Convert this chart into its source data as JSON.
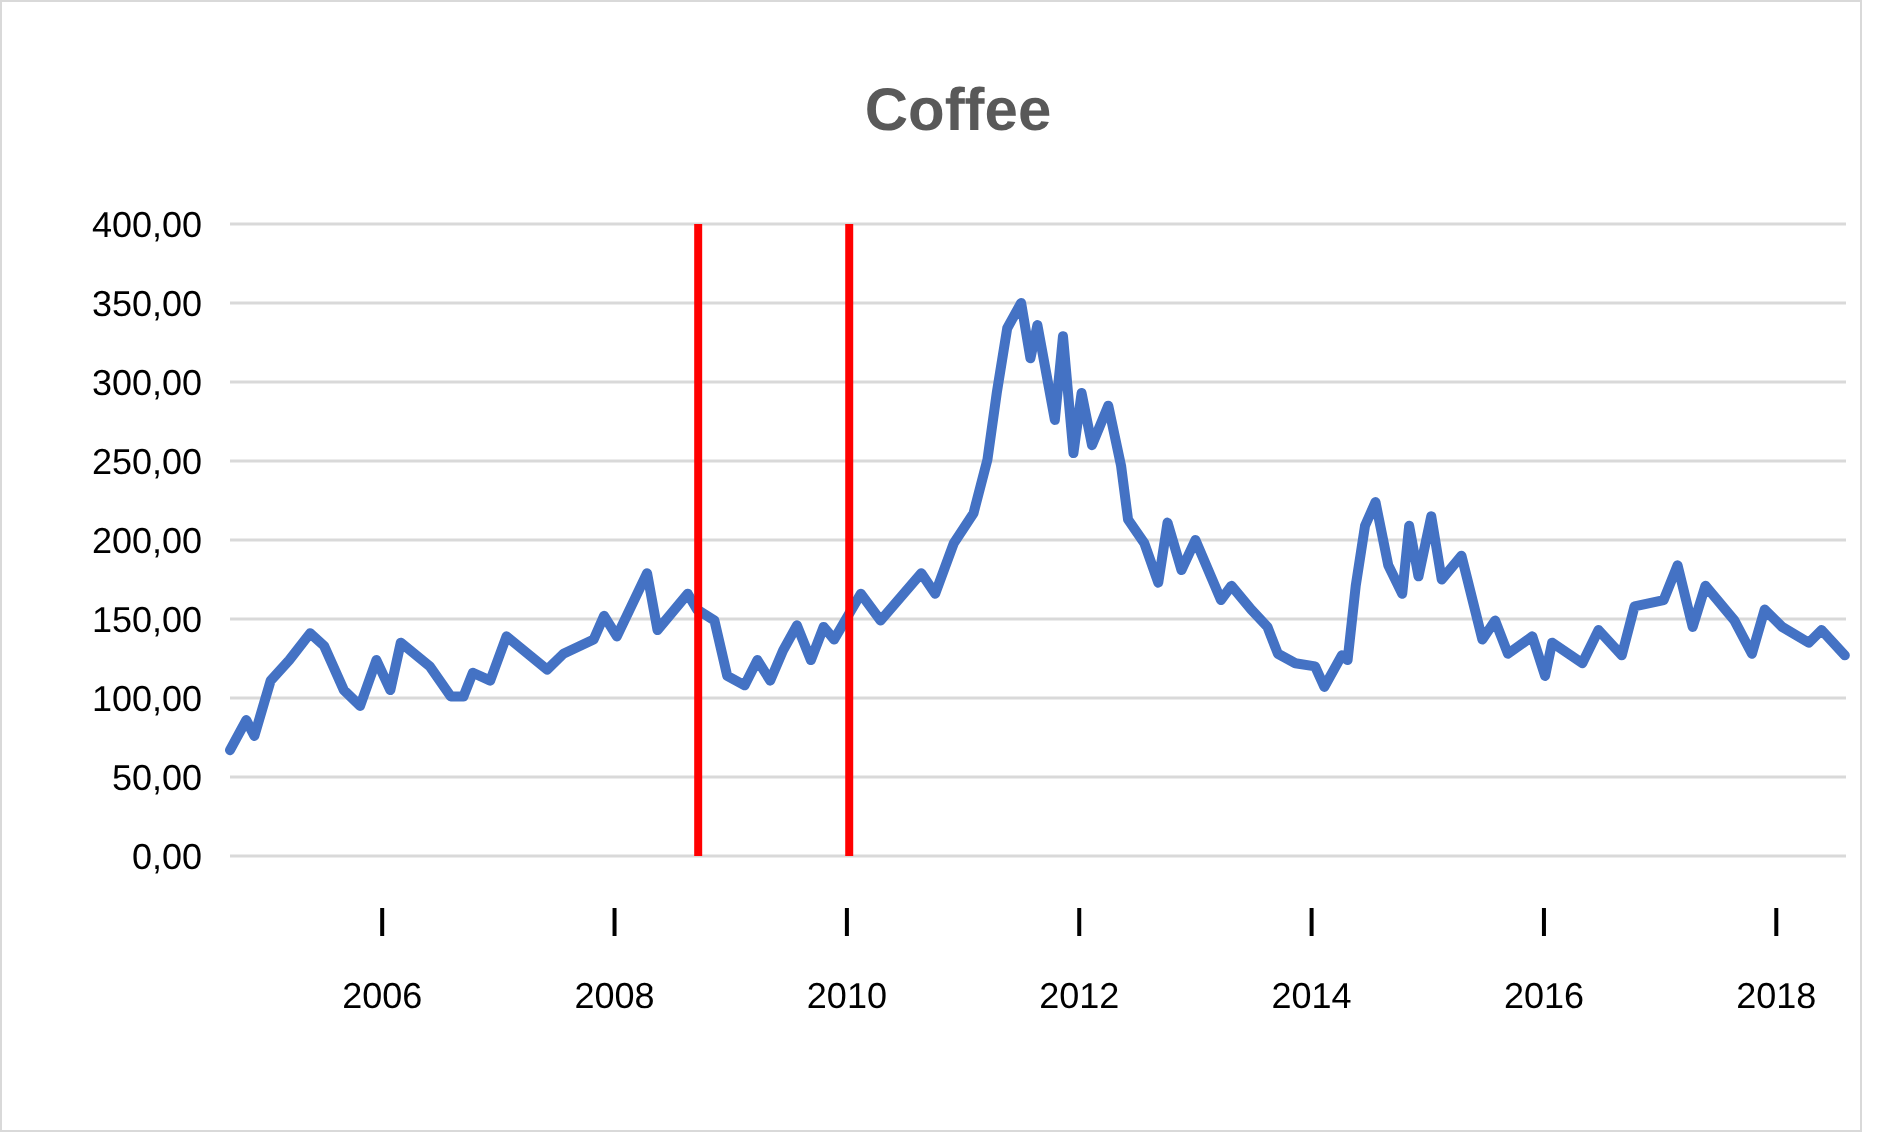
{
  "chart_data": {
    "type": "line",
    "title": "Coffee",
    "x": [
      2004.69,
      2004.83,
      2004.9,
      2005.04,
      2005.2,
      2005.38,
      2005.5,
      2005.67,
      2005.81,
      2005.95,
      2006.07,
      2006.16,
      2006.41,
      2006.59,
      2006.7,
      2006.78,
      2006.93,
      2007.07,
      2007.42,
      2007.56,
      2007.82,
      2007.91,
      2008.02,
      2008.28,
      2008.37,
      2008.63,
      2008.71,
      2008.86,
      2008.97,
      2009.12,
      2009.23,
      2009.34,
      2009.45,
      2009.57,
      2009.69,
      2009.8,
      2009.89,
      2010.12,
      2010.29,
      2010.64,
      2010.76,
      2010.92,
      2011.09,
      2011.21,
      2011.29,
      2011.38,
      2011.5,
      2011.58,
      2011.64,
      2011.79,
      2011.86,
      2011.95,
      2012.02,
      2012.11,
      2012.25,
      2012.36,
      2012.42,
      2012.56,
      2012.68,
      2012.76,
      2012.88,
      2013.0,
      2013.22,
      2013.31,
      2013.48,
      2013.62,
      2013.71,
      2013.86,
      2014.03,
      2014.11,
      2014.26,
      2014.31,
      2014.38,
      2014.46,
      2014.55,
      2014.66,
      2014.78,
      2014.84,
      2014.92,
      2015.03,
      2015.12,
      2015.29,
      2015.47,
      2015.58,
      2015.69,
      2015.9,
      2016.01,
      2016.07,
      2016.33,
      2016.47,
      2016.67,
      2016.78,
      2017.03,
      2017.15,
      2017.28,
      2017.39,
      2017.64,
      2017.79,
      2017.9,
      2018.05,
      2018.28,
      2018.39,
      2018.59
    ],
    "values": [
      67,
      86,
      76,
      111,
      124,
      141,
      133,
      105,
      95,
      124,
      105,
      135,
      120,
      101,
      101,
      116,
      111,
      139,
      118,
      128,
      137,
      152,
      139,
      179,
      143,
      166,
      156,
      149,
      114,
      108,
      124,
      111,
      130,
      146,
      124,
      145,
      137,
      166,
      149,
      179,
      166,
      198,
      217,
      251,
      293,
      334,
      350,
      315,
      336,
      276,
      329,
      255,
      293,
      260,
      285,
      247,
      213,
      198,
      173,
      211,
      181,
      200,
      162,
      171,
      156,
      145,
      128,
      122,
      120,
      107,
      127,
      124,
      171,
      209,
      224,
      184,
      166,
      209,
      177,
      215,
      175,
      190,
      137,
      149,
      128,
      139,
      114,
      135,
      122,
      143,
      127,
      158,
      162,
      184,
      145,
      171,
      149,
      128,
      156,
      145,
      135,
      143,
      127
    ],
    "color": "#4472c4",
    "xlim": [
      2004.69,
      2018.6
    ],
    "xticks": [
      2006,
      2008,
      2010,
      2012,
      2014,
      2016,
      2018
    ],
    "ylim": [
      0,
      400
    ],
    "yticks": [
      {
        "value": 0,
        "label": "0,00"
      },
      {
        "value": 50,
        "label": "50,00"
      },
      {
        "value": 100,
        "label": "100,00"
      },
      {
        "value": 150,
        "label": "150,00"
      },
      {
        "value": 200,
        "label": "200,00"
      },
      {
        "value": 250,
        "label": "250,00"
      },
      {
        "value": 300,
        "label": "300,00"
      },
      {
        "value": 350,
        "label": "350,00"
      },
      {
        "value": 400,
        "label": "400,00"
      }
    ],
    "grid": "y",
    "ref_lines": [
      {
        "axis": "x",
        "value": 2008.72,
        "color": "#ff0000"
      },
      {
        "axis": "x",
        "value": 2010.02,
        "color": "#ff0000"
      }
    ]
  }
}
